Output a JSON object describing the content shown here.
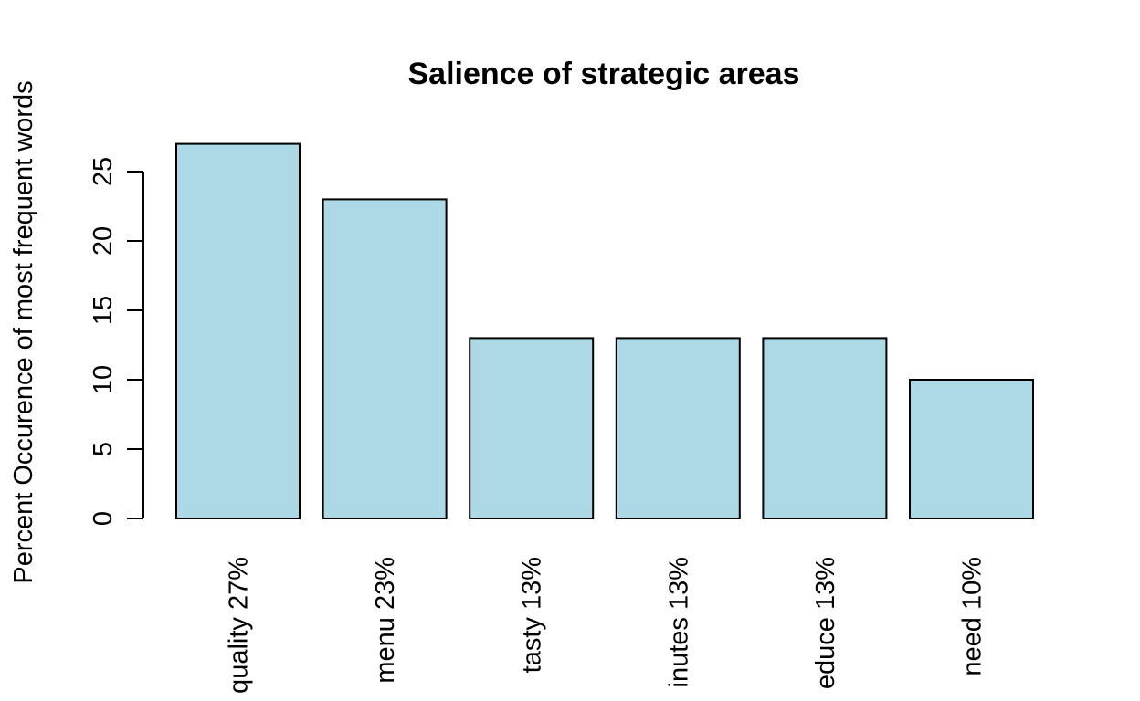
{
  "chart_data": {
    "type": "bar",
    "title": "Salience of strategic areas",
    "xlabel": "",
    "ylabel": "Percent Occurence of most frequent words",
    "categories": [
      "quality 27%",
      "menu 23%",
      "tasty 13%",
      "inutes 13%",
      "educe 13%",
      "need 10%"
    ],
    "values": [
      27,
      23,
      13,
      13,
      13,
      10
    ],
    "yticks": [
      0,
      5,
      10,
      15,
      20,
      25
    ],
    "ylim": [
      0,
      27
    ],
    "bar_color": "#ADD8E6",
    "bar_border_color": "#000000",
    "grid": false,
    "legend": "none"
  }
}
